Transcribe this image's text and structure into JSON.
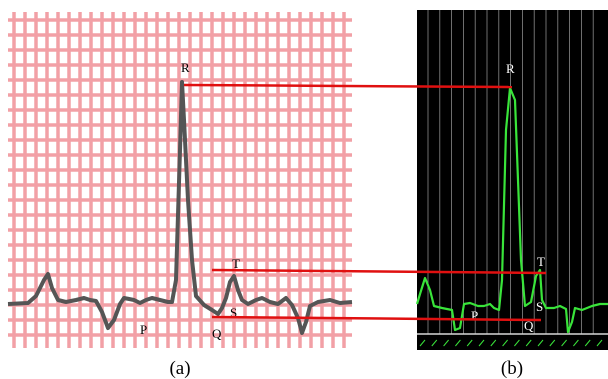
{
  "panel_a": {
    "caption": "(a)",
    "labels": {
      "R": "R",
      "T": "T",
      "S": "S",
      "P": "P",
      "Q": "Q"
    },
    "colors": {
      "grid": "#f2a0a6",
      "background": "#ffffff",
      "trace": "#555555",
      "label": "#000000"
    }
  },
  "panel_b": {
    "caption": "(b)",
    "labels": {
      "R": "R",
      "T": "T",
      "S": "S",
      "P": "P",
      "Q": "Q"
    },
    "colors": {
      "background": "#000000",
      "grid": "#8a8a8a",
      "trace": "#39e43a",
      "label": "#ffffff"
    }
  },
  "connectors": {
    "color": "#e01010",
    "links": [
      "R",
      "T",
      "S"
    ]
  }
}
